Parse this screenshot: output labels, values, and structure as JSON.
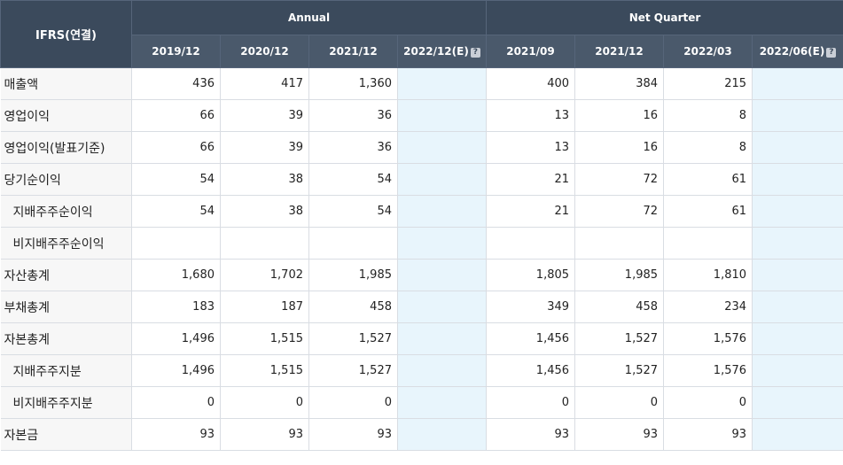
{
  "header": {
    "corner_label": "IFRS(연결)",
    "annual_label": "Annual",
    "quarter_label": "Net Quarter",
    "annual_cols": [
      "2019/12",
      "2020/12",
      "2021/12",
      "2022/12(E)"
    ],
    "quarter_cols": [
      "2021/09",
      "2021/12",
      "2022/03",
      "2022/06(E)"
    ],
    "help_glyph": "?"
  },
  "rows": [
    {
      "label": "매출액",
      "sub": false,
      "annual": [
        "436",
        "417",
        "1,360",
        ""
      ],
      "quarter": [
        "400",
        "384",
        "215",
        ""
      ]
    },
    {
      "label": "영업이익",
      "sub": false,
      "annual": [
        "66",
        "39",
        "36",
        ""
      ],
      "quarter": [
        "13",
        "16",
        "8",
        ""
      ]
    },
    {
      "label": "영업이익(발표기준)",
      "sub": false,
      "annual": [
        "66",
        "39",
        "36",
        ""
      ],
      "quarter": [
        "13",
        "16",
        "8",
        ""
      ]
    },
    {
      "label": "당기순이익",
      "sub": false,
      "annual": [
        "54",
        "38",
        "54",
        ""
      ],
      "quarter": [
        "21",
        "72",
        "61",
        ""
      ]
    },
    {
      "label": "지배주주순이익",
      "sub": true,
      "annual": [
        "54",
        "38",
        "54",
        ""
      ],
      "quarter": [
        "21",
        "72",
        "61",
        ""
      ]
    },
    {
      "label": "비지배주주순이익",
      "sub": true,
      "annual": [
        "",
        "",
        "",
        ""
      ],
      "quarter": [
        "",
        "",
        "",
        ""
      ]
    },
    {
      "label": "자산총계",
      "sub": false,
      "annual": [
        "1,680",
        "1,702",
        "1,985",
        ""
      ],
      "quarter": [
        "1,805",
        "1,985",
        "1,810",
        ""
      ]
    },
    {
      "label": "부채총계",
      "sub": false,
      "annual": [
        "183",
        "187",
        "458",
        ""
      ],
      "quarter": [
        "349",
        "458",
        "234",
        ""
      ]
    },
    {
      "label": "자본총계",
      "sub": false,
      "annual": [
        "1,496",
        "1,515",
        "1,527",
        ""
      ],
      "quarter": [
        "1,456",
        "1,527",
        "1,576",
        ""
      ]
    },
    {
      "label": "지배주주지분",
      "sub": true,
      "annual": [
        "1,496",
        "1,515",
        "1,527",
        ""
      ],
      "quarter": [
        "1,456",
        "1,527",
        "1,576",
        ""
      ]
    },
    {
      "label": "비지배주주지분",
      "sub": true,
      "annual": [
        "0",
        "0",
        "0",
        ""
      ],
      "quarter": [
        "0",
        "0",
        "0",
        ""
      ]
    },
    {
      "label": "자본금",
      "sub": false,
      "annual": [
        "93",
        "93",
        "93",
        ""
      ],
      "quarter": [
        "93",
        "93",
        "93",
        ""
      ]
    }
  ]
}
